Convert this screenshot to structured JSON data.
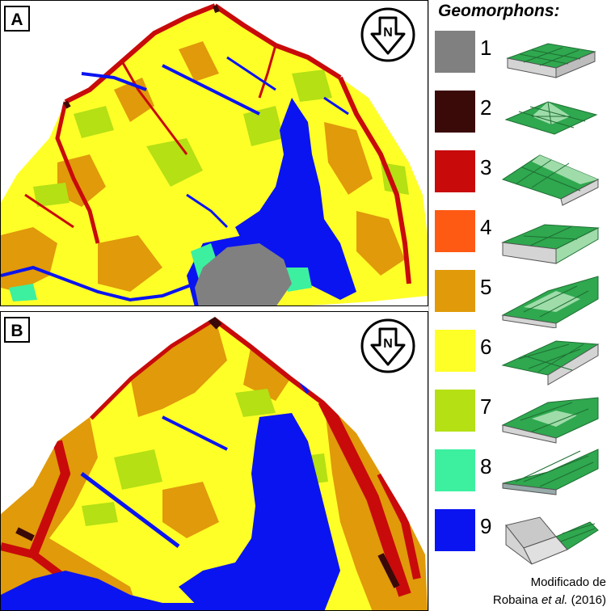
{
  "panels": {
    "a": {
      "label": "A"
    },
    "b": {
      "label": "B"
    }
  },
  "north_label": "N",
  "legend": {
    "title": "Geomorphons:",
    "items": [
      {
        "num": "1",
        "color": "#808080",
        "icon": "flat-icon"
      },
      {
        "num": "2",
        "color": "#3a0a08",
        "icon": "peak-icon"
      },
      {
        "num": "3",
        "color": "#c80a0a",
        "icon": "ridge-icon"
      },
      {
        "num": "4",
        "color": "#ff5a14",
        "icon": "shoulder-icon"
      },
      {
        "num": "5",
        "color": "#e09a0a",
        "icon": "spur-icon"
      },
      {
        "num": "6",
        "color": "#ffff28",
        "icon": "slope-icon"
      },
      {
        "num": "7",
        "color": "#b4e014",
        "icon": "hollow-icon"
      },
      {
        "num": "8",
        "color": "#3cf0a0",
        "icon": "footslope-icon"
      },
      {
        "num": "9",
        "color": "#0a14f0",
        "icon": "valley-icon"
      }
    ]
  },
  "credit": {
    "line1": "Modificado de",
    "author": "Robaina ",
    "etal": "et al.",
    "year": " (2016)"
  }
}
